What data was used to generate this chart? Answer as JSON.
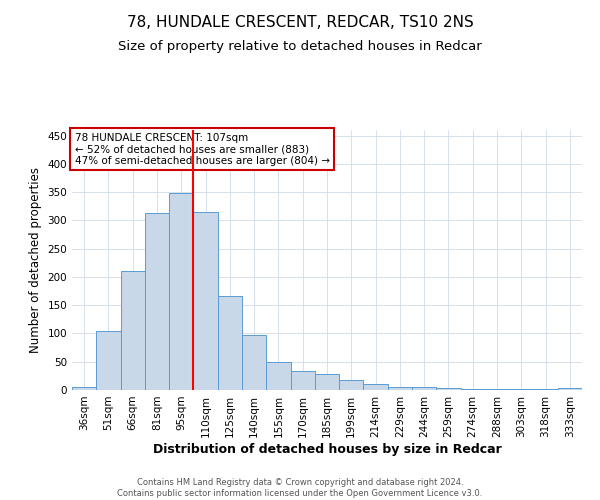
{
  "title": "78, HUNDALE CRESCENT, REDCAR, TS10 2NS",
  "subtitle": "Size of property relative to detached houses in Redcar",
  "xlabel": "Distribution of detached houses by size in Redcar",
  "ylabel": "Number of detached properties",
  "footer_line1": "Contains HM Land Registry data © Crown copyright and database right 2024.",
  "footer_line2": "Contains public sector information licensed under the Open Government Licence v3.0.",
  "categories": [
    "36sqm",
    "51sqm",
    "66sqm",
    "81sqm",
    "95sqm",
    "110sqm",
    "125sqm",
    "140sqm",
    "155sqm",
    "170sqm",
    "185sqm",
    "199sqm",
    "214sqm",
    "229sqm",
    "244sqm",
    "259sqm",
    "274sqm",
    "288sqm",
    "303sqm",
    "318sqm",
    "333sqm"
  ],
  "values": [
    6,
    105,
    210,
    313,
    348,
    315,
    167,
    98,
    50,
    34,
    29,
    17,
    10,
    5,
    5,
    3,
    2,
    2,
    2,
    2,
    3
  ],
  "bar_color": "#c8d8e8",
  "bar_edge_color": "#5b9bd5",
  "red_line_after_index": 4,
  "annotation_text_line1": "78 HUNDALE CRESCENT: 107sqm",
  "annotation_text_line2": "← 52% of detached houses are smaller (883)",
  "annotation_text_line3": "47% of semi-detached houses are larger (804) →",
  "annotation_box_color": "#ffffff",
  "annotation_box_edge": "#cc0000",
  "ylim": [
    0,
    460
  ],
  "yticks": [
    0,
    50,
    100,
    150,
    200,
    250,
    300,
    350,
    400,
    450
  ],
  "bg_color": "#ffffff",
  "grid_color": "#d0dce8",
  "title_fontsize": 11,
  "subtitle_fontsize": 9.5,
  "xlabel_fontsize": 9,
  "ylabel_fontsize": 8.5,
  "tick_fontsize": 7.5,
  "annotation_fontsize": 7.5,
  "footer_fontsize": 6
}
